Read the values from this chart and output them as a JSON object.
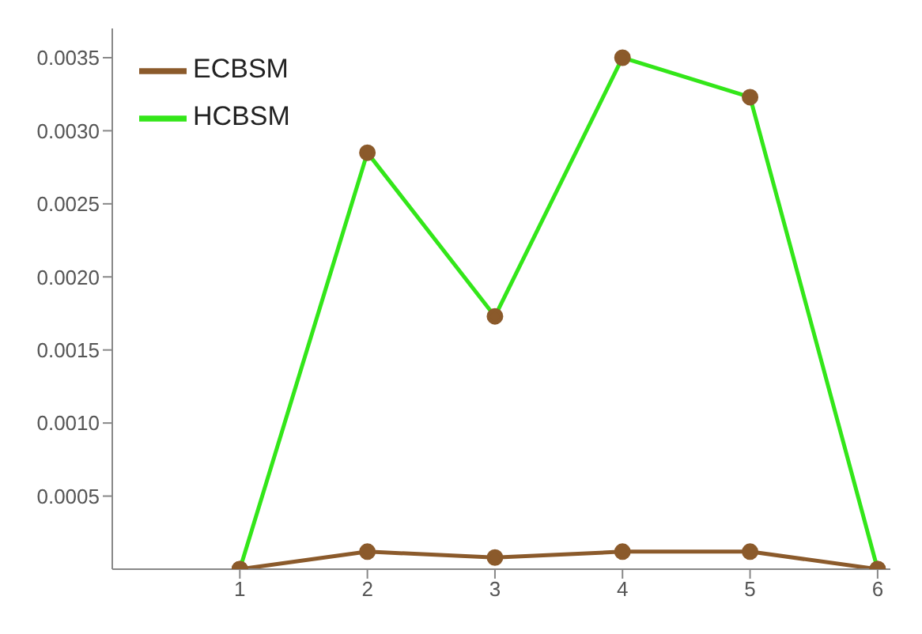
{
  "chart_data": {
    "type": "line",
    "x": [
      1,
      2,
      3,
      4,
      5,
      6
    ],
    "series": [
      {
        "name": "ECBSM",
        "color": "#8b5a2b",
        "values": [
          0,
          0.00012,
          8e-05,
          0.00012,
          0.00012,
          0
        ]
      },
      {
        "name": "HCBSM",
        "color": "#33e619",
        "values": [
          0,
          0.00285,
          0.00173,
          0.0035,
          0.00323,
          0
        ]
      }
    ],
    "xlim": [
      0,
      6.1
    ],
    "xticks": [
      1,
      2,
      3,
      4,
      5,
      6
    ],
    "ylim": [
      0,
      0.0037
    ],
    "yticks": [
      0.0005,
      {
        "value": 0.001,
        "label": "0.0010"
      },
      0.0015,
      {
        "value": 0.002,
        "label": "0.0020"
      },
      0.0025,
      {
        "value": 0.003,
        "label": "0.0030"
      },
      0.0035
    ],
    "grid": false,
    "legend": "top left",
    "marker": "circle",
    "line_style": "solid"
  }
}
